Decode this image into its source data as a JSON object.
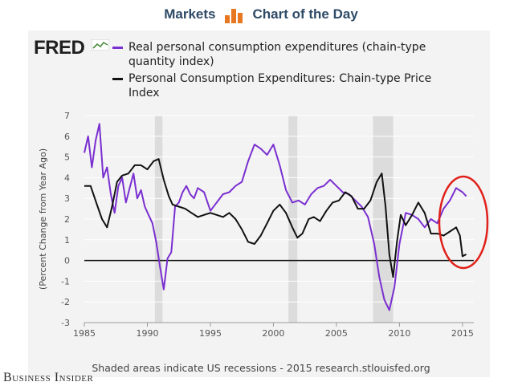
{
  "header": {
    "left_label": "Markets",
    "right_label": "Chart of the Day"
  },
  "logo_text": "FRED",
  "footer": "Shaded areas indicate US recessions - 2015 research.stlouisfed.org",
  "brand": "Business Insider",
  "chart_data": {
    "type": "line",
    "title": "",
    "xlabel": "",
    "ylabel": "(Percent Change from Year Ago)",
    "xlim": [
      1985,
      2015.9
    ],
    "ylim": [
      -3,
      7
    ],
    "x_ticks": [
      1985,
      1990,
      1995,
      2000,
      2005,
      2010,
      2015
    ],
    "y_ticks": [
      -3,
      -2,
      -1,
      0,
      1,
      2,
      3,
      4,
      5,
      6,
      7
    ],
    "grid": "horizontal",
    "zero_line": true,
    "recessions": [
      [
        1990.6,
        1991.2
      ],
      [
        2001.2,
        2001.9
      ],
      [
        2007.9,
        2009.5
      ]
    ],
    "annotation": "red circle around 2013-2015",
    "series": [
      {
        "name": "Real personal consumption expenditures (chain-type quantity index)",
        "color": "#7a2fd0",
        "x": [
          1985.0,
          1985.3,
          1985.6,
          1985.9,
          1986.2,
          1986.5,
          1986.8,
          1987.1,
          1987.4,
          1987.7,
          1988.0,
          1988.3,
          1988.6,
          1988.9,
          1989.2,
          1989.5,
          1989.8,
          1990.1,
          1990.4,
          1990.7,
          1991.0,
          1991.3,
          1991.6,
          1991.9,
          1992.2,
          1992.5,
          1992.8,
          1993.1,
          1993.4,
          1993.7,
          1994.0,
          1994.5,
          1995.0,
          1995.5,
          1996.0,
          1996.5,
          1997.0,
          1997.5,
          1998.0,
          1998.5,
          1999.0,
          1999.5,
          2000.0,
          2000.5,
          2001.0,
          2001.5,
          2002.0,
          2002.5,
          2003.0,
          2003.5,
          2004.0,
          2004.5,
          2005.0,
          2005.5,
          2006.0,
          2006.5,
          2007.0,
          2007.5,
          2008.0,
          2008.4,
          2008.8,
          2009.2,
          2009.6,
          2010.0,
          2010.5,
          2011.0,
          2011.5,
          2012.0,
          2012.5,
          2013.0,
          2013.5,
          2014.0,
          2014.5,
          2015.0,
          2015.3
        ],
        "values": [
          5.2,
          6.0,
          4.5,
          5.8,
          6.6,
          4.0,
          4.5,
          3.2,
          2.3,
          3.6,
          4.0,
          2.8,
          3.5,
          4.2,
          3.0,
          3.4,
          2.6,
          2.2,
          1.8,
          0.9,
          -0.3,
          -1.4,
          0.1,
          0.4,
          2.6,
          2.8,
          3.3,
          3.6,
          3.2,
          3.0,
          3.5,
          3.3,
          2.4,
          2.8,
          3.2,
          3.3,
          3.6,
          3.8,
          4.8,
          5.6,
          5.4,
          5.1,
          5.6,
          4.6,
          3.4,
          2.8,
          2.9,
          2.7,
          3.2,
          3.5,
          3.6,
          3.9,
          3.6,
          3.3,
          3.2,
          2.9,
          2.6,
          2.1,
          0.8,
          -0.8,
          -1.9,
          -2.4,
          -1.3,
          0.8,
          2.3,
          2.2,
          2.0,
          1.6,
          2.0,
          1.8,
          2.5,
          2.9,
          3.5,
          3.3,
          3.1
        ]
      },
      {
        "name": "Personal Consumption Expenditures: Chain-type Price Index",
        "color": "#111111",
        "x": [
          1985.0,
          1985.5,
          1986.0,
          1986.4,
          1986.8,
          1987.2,
          1987.6,
          1988.0,
          1988.5,
          1989.0,
          1989.5,
          1990.0,
          1990.5,
          1990.9,
          1991.3,
          1991.7,
          1992.0,
          1992.5,
          1993.0,
          1993.5,
          1994.0,
          1994.5,
          1995.0,
          1995.5,
          1996.0,
          1996.5,
          1997.0,
          1997.5,
          1998.0,
          1998.5,
          1999.0,
          1999.5,
          2000.0,
          2000.5,
          2001.0,
          2001.5,
          2001.9,
          2002.3,
          2002.8,
          2003.2,
          2003.7,
          2004.2,
          2004.7,
          2005.2,
          2005.7,
          2006.2,
          2006.7,
          2007.2,
          2007.7,
          2008.2,
          2008.6,
          2008.9,
          2009.2,
          2009.5,
          2009.8,
          2010.1,
          2010.5,
          2011.0,
          2011.5,
          2012.0,
          2012.5,
          2013.0,
          2013.5,
          2014.0,
          2014.5,
          2014.8,
          2015.0,
          2015.3
        ],
        "values": [
          3.6,
          3.6,
          2.7,
          2.0,
          1.6,
          2.6,
          3.8,
          4.1,
          4.2,
          4.6,
          4.6,
          4.4,
          4.8,
          4.9,
          3.9,
          3.1,
          2.7,
          2.6,
          2.5,
          2.3,
          2.1,
          2.2,
          2.3,
          2.2,
          2.1,
          2.3,
          2.0,
          1.5,
          0.9,
          0.8,
          1.2,
          1.8,
          2.4,
          2.7,
          2.3,
          1.6,
          1.1,
          1.3,
          2.0,
          2.1,
          1.9,
          2.4,
          2.8,
          2.9,
          3.3,
          3.1,
          2.5,
          2.5,
          2.9,
          3.8,
          4.2,
          2.6,
          0.3,
          -0.8,
          0.9,
          2.2,
          1.7,
          2.2,
          2.8,
          2.3,
          1.3,
          1.3,
          1.2,
          1.4,
          1.6,
          1.2,
          0.2,
          0.3
        ]
      }
    ]
  }
}
